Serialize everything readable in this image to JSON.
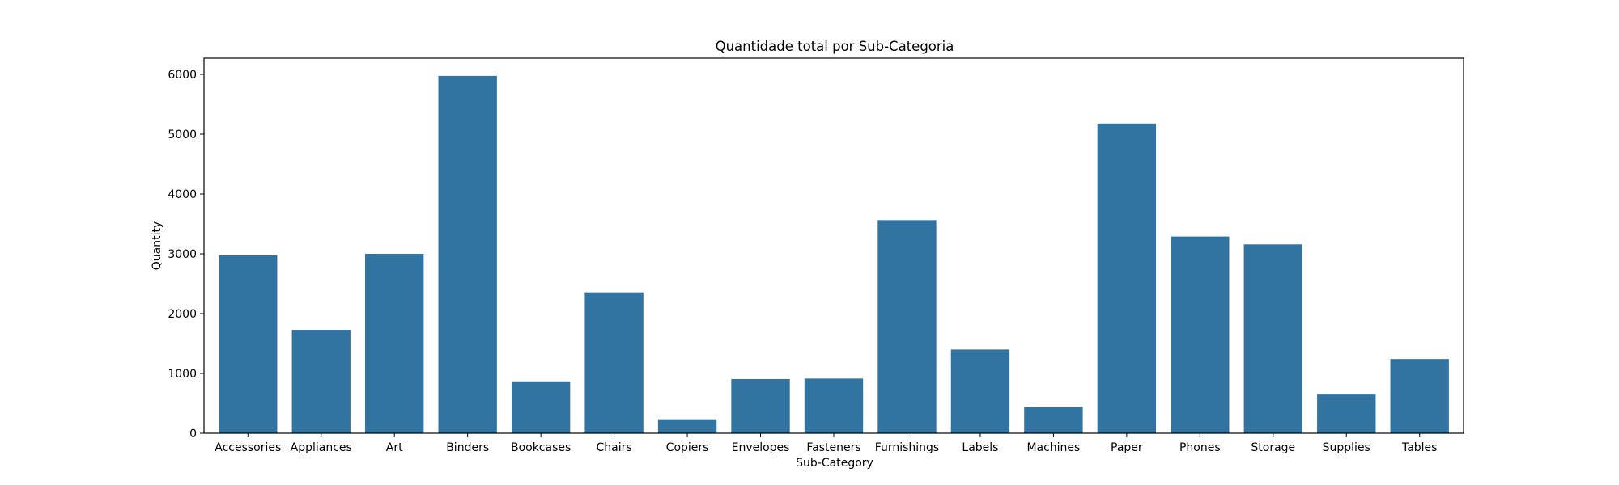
{
  "chart_data": {
    "type": "bar",
    "title": "Quantidade total por Sub-Categoria",
    "xlabel": "Sub-Category",
    "ylabel": "Quantity",
    "categories": [
      "Accessories",
      "Appliances",
      "Art",
      "Binders",
      "Bookcases",
      "Chairs",
      "Copiers",
      "Envelopes",
      "Fasteners",
      "Furnishings",
      "Labels",
      "Machines",
      "Paper",
      "Phones",
      "Storage",
      "Supplies",
      "Tables"
    ],
    "values": [
      2976,
      1729,
      3000,
      5974,
      868,
      2356,
      234,
      906,
      914,
      3563,
      1400,
      440,
      5178,
      3289,
      3158,
      647,
      1241
    ],
    "ylim": [
      0,
      6270
    ],
    "yticks": [
      0,
      1000,
      2000,
      3000,
      4000,
      5000,
      6000
    ],
    "grid": false,
    "bar_color": "#3274a1"
  }
}
